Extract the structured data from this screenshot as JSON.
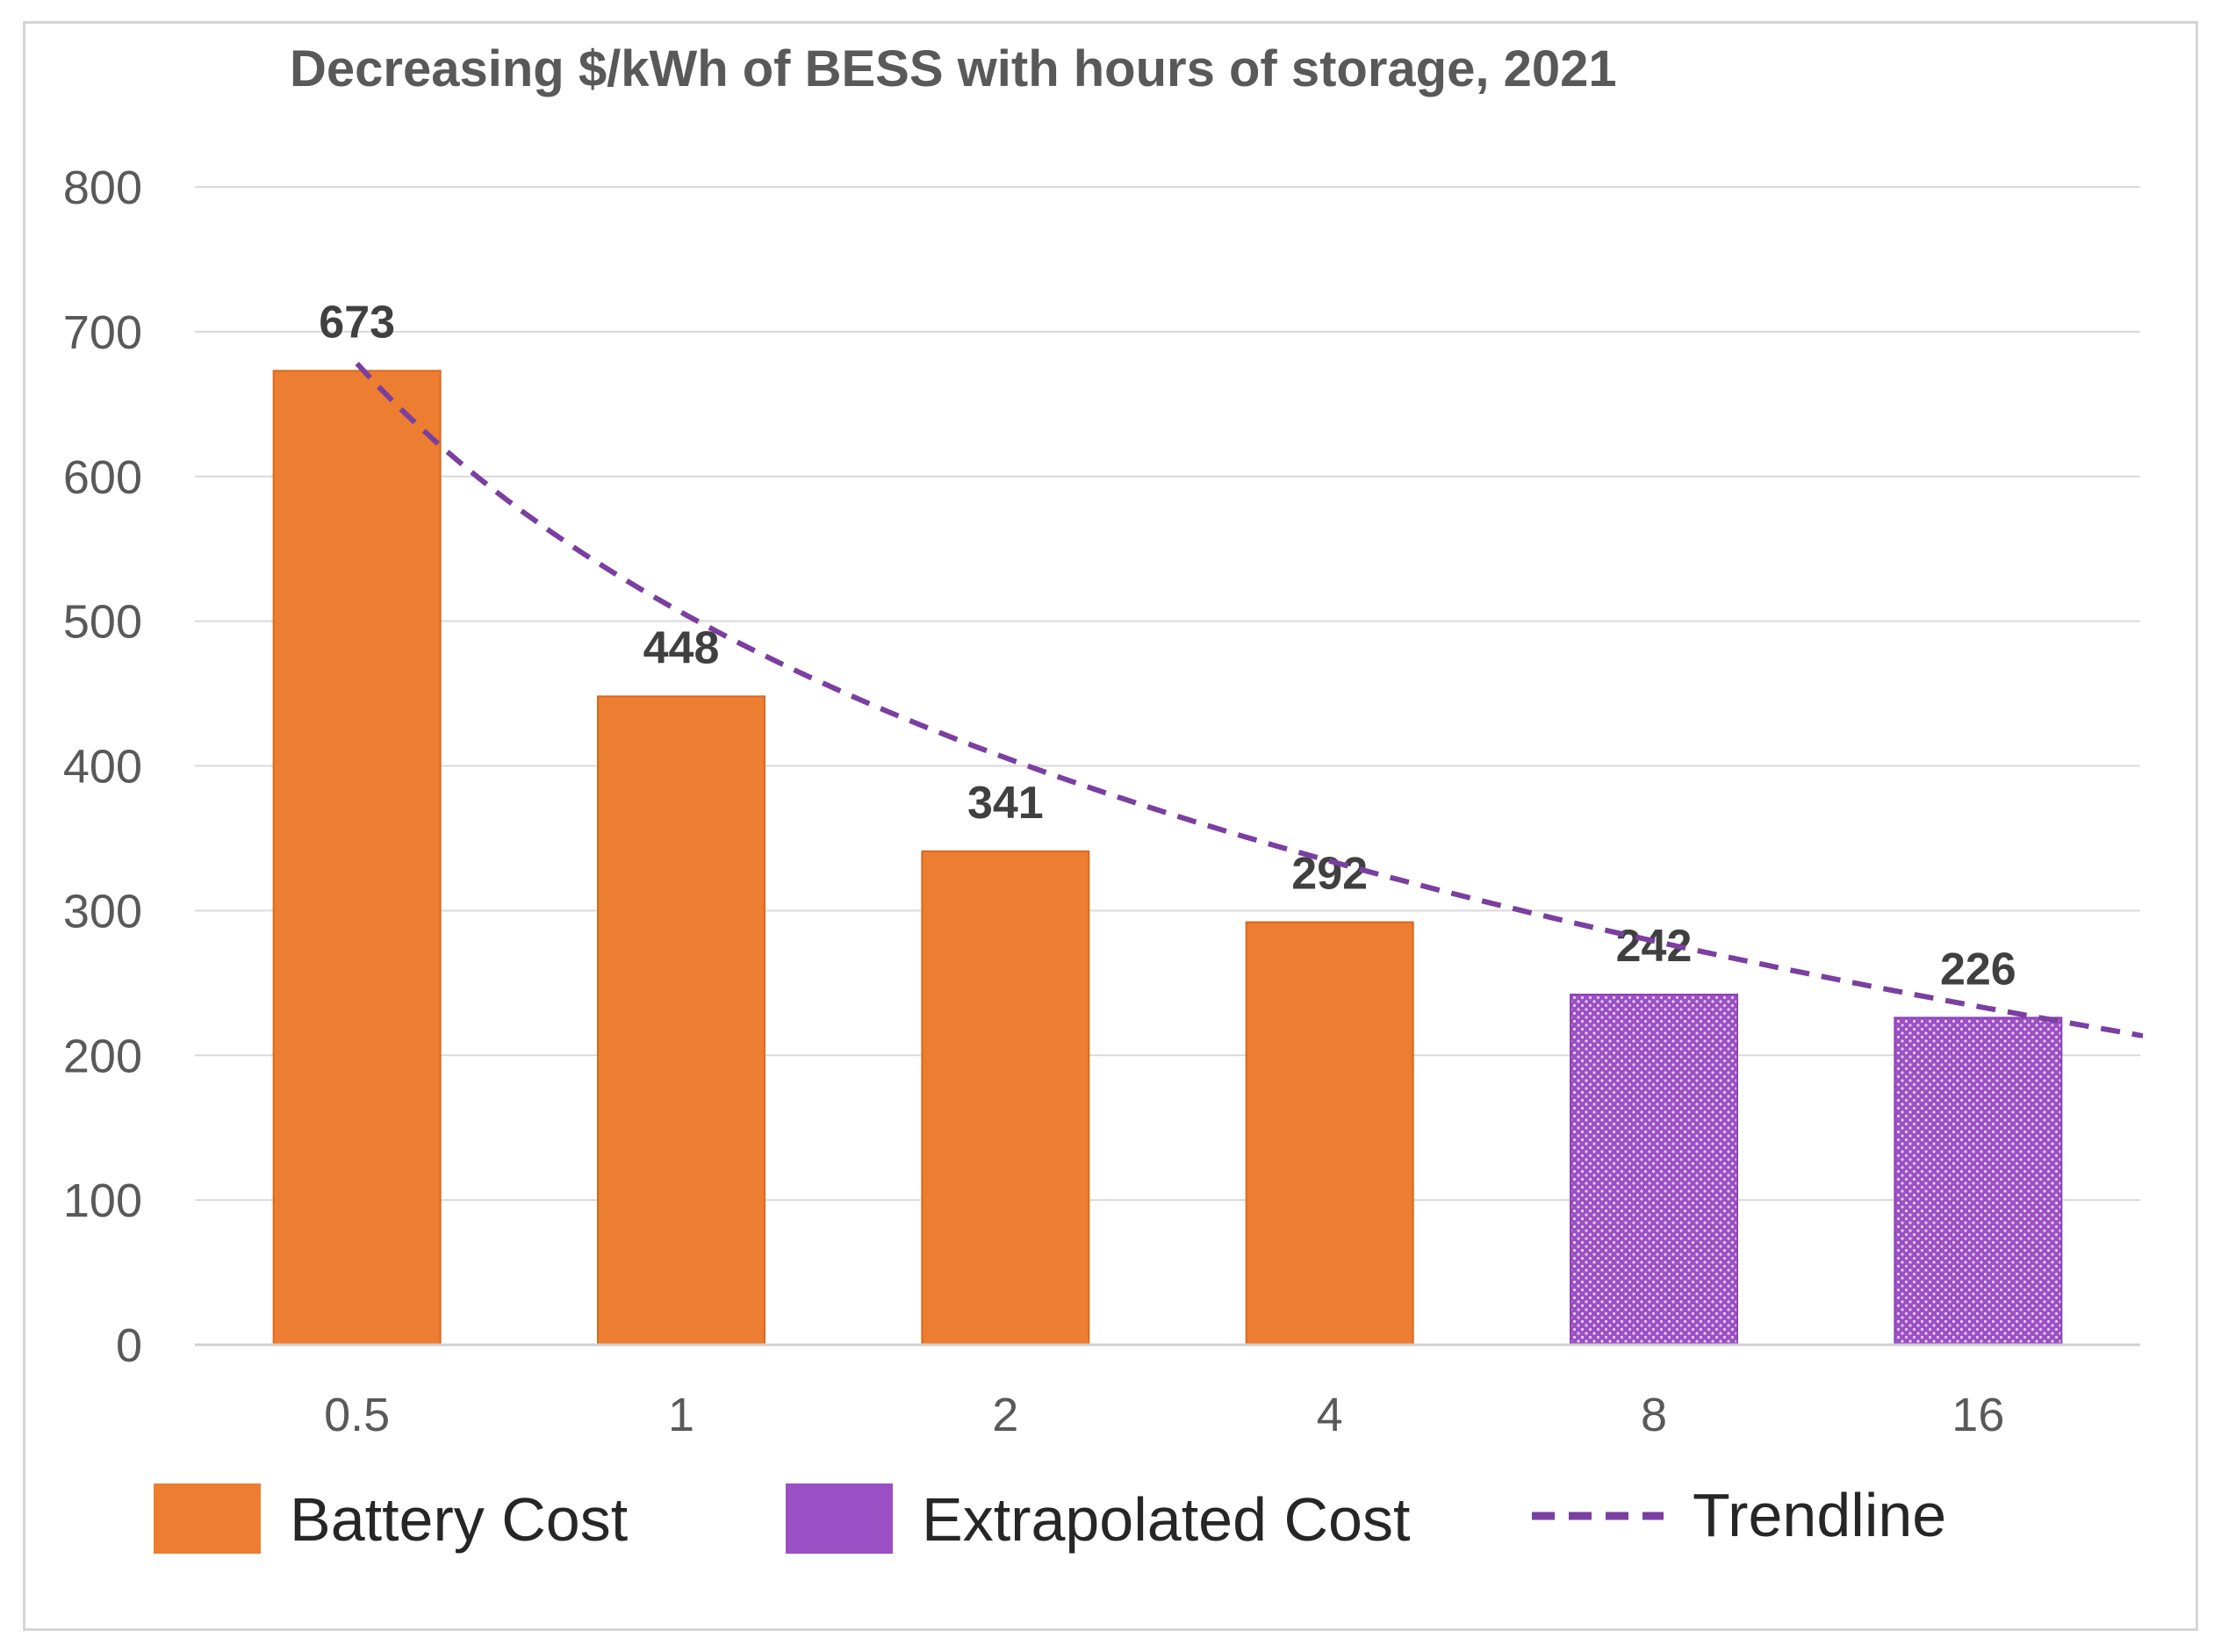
{
  "chart_data": {
    "type": "bar",
    "title": "Decreasing $/kWh of BESS with hours of storage, 2021",
    "xlabel": "",
    "ylabel": "",
    "categories": [
      "0.5",
      "1",
      "2",
      "4",
      "8",
      "16"
    ],
    "values": [
      673,
      448,
      341,
      292,
      242,
      226
    ],
    "data_labels": [
      "673",
      "448",
      "341",
      "292",
      "242",
      "226"
    ],
    "series_of_bar": [
      0,
      0,
      0,
      0,
      1,
      1
    ],
    "series": [
      {
        "name": "Battery Cost",
        "color": "#ED7D31",
        "pattern": "solid"
      },
      {
        "name": "Extrapolated Cost",
        "color": "#9B4FC4",
        "pattern": "dotted"
      }
    ],
    "trendline": {
      "name": "Trendline",
      "color": "#7A3FA0",
      "style": "dashed",
      "type": "logarithmic",
      "start_value": 678,
      "end_value": 212
    },
    "ylim": [
      0,
      800
    ],
    "yticks": [
      0,
      100,
      200,
      300,
      400,
      500,
      600,
      700,
      800
    ],
    "grid": true,
    "legend": {
      "position": "bottom",
      "items": [
        "Battery Cost",
        "Extrapolated Cost",
        "Trendline"
      ]
    }
  }
}
